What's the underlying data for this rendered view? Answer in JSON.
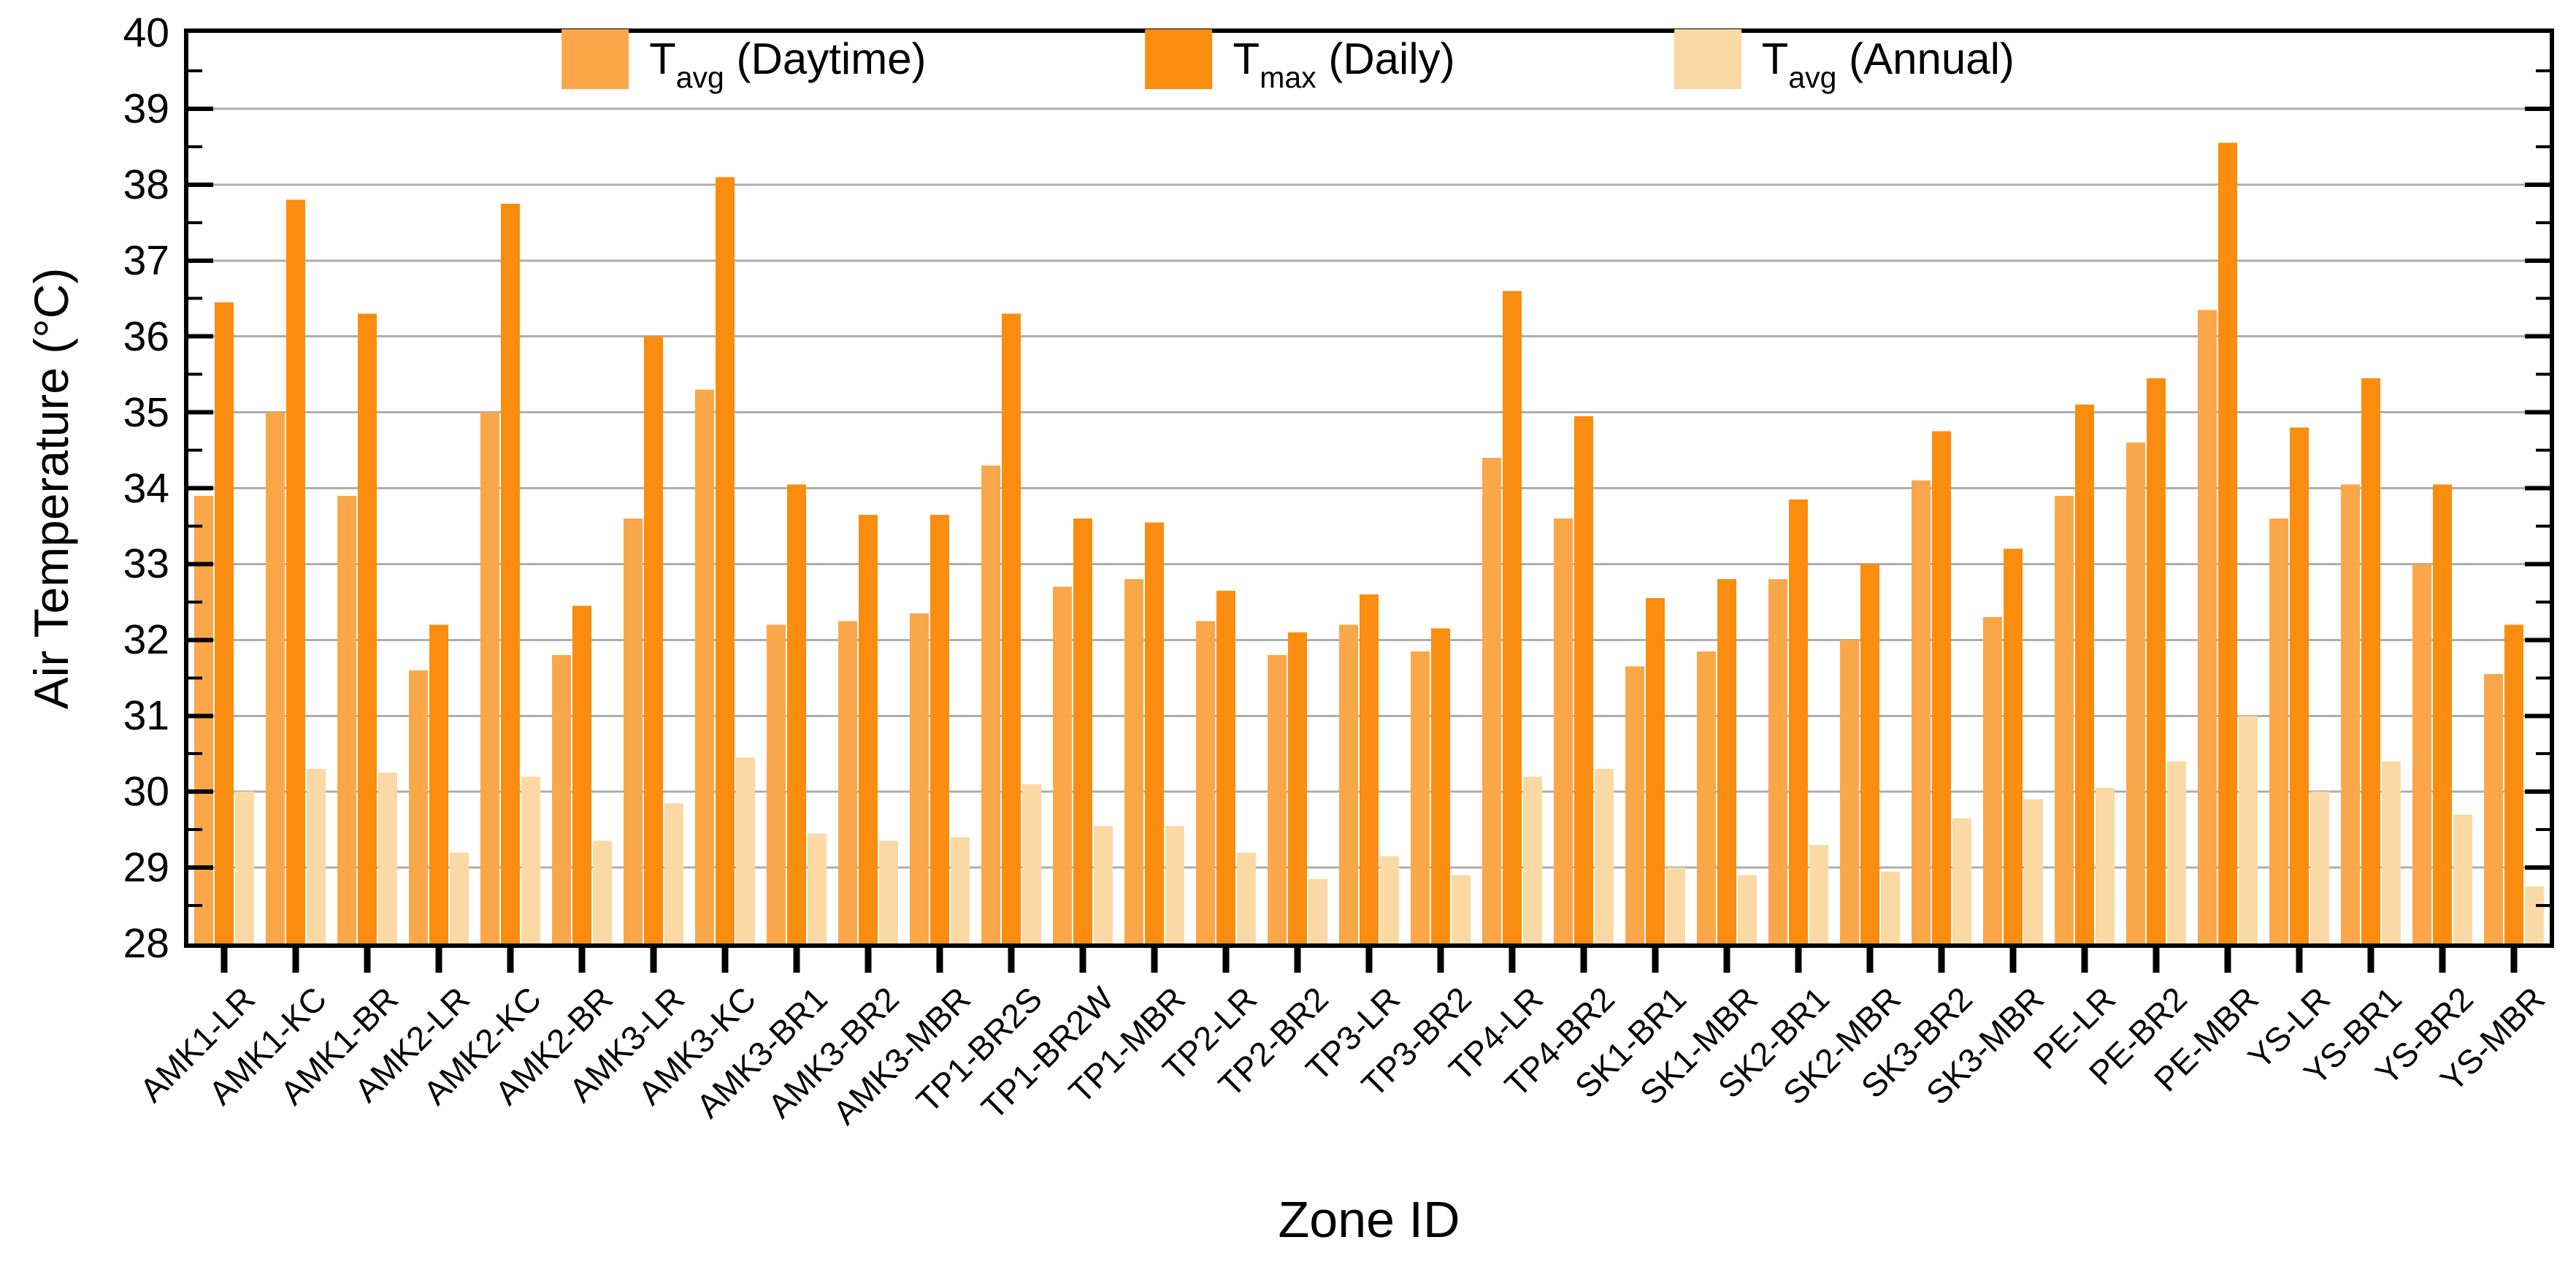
{
  "figure": {
    "y_axis_title": "Air Temperature (°C)",
    "x_axis_title": "Zone ID"
  },
  "chart_data": {
    "type": "bar",
    "title": "",
    "xlabel": "Zone ID",
    "ylabel": "Air Temperature (°C)",
    "ylim": [
      28,
      40
    ],
    "yticks": [
      28,
      29,
      30,
      31,
      32,
      33,
      34,
      35,
      36,
      37,
      38,
      39,
      40
    ],
    "grid": "horizontal gray gridlines at each integer",
    "legend_position": "top-center, inside plot area",
    "bar_group": "3 bars per category",
    "categories": [
      "AMK1-LR",
      "AMK1-KC",
      "AMK1-BR",
      "AMK2-LR",
      "AMK2-KC",
      "AMK2-BR",
      "AMK3-LR",
      "AMK3-KC",
      "AMK3-BR1",
      "AMK3-BR2",
      "AMK3-MBR",
      "TP1-BR2S",
      "TP1-BR2W",
      "TP1-MBR",
      "TP2-LR",
      "TP2-BR2",
      "TP3-LR",
      "TP3-BR2",
      "TP4-LR",
      "TP4-BR2",
      "SK1-BR1",
      "SK1-MBR",
      "SK2-BR1",
      "SK2-MBR",
      "SK3-BR2",
      "SK3-MBR",
      "PE-LR",
      "PE-BR2",
      "PE-MBR",
      "YS-LR",
      "YS-BR1",
      "YS-BR2",
      "YS-MBR"
    ],
    "series": [
      {
        "name": "Tavg (Daytime)",
        "label": {
          "t": "T",
          "sub": "avg",
          "rest": " (Daytime)"
        },
        "color": "#FAA74A",
        "values": [
          33.9,
          35.0,
          33.9,
          31.6,
          35.0,
          31.8,
          33.6,
          35.3,
          32.2,
          32.25,
          32.35,
          34.3,
          32.7,
          32.8,
          32.25,
          31.8,
          32.2,
          31.85,
          34.4,
          33.6,
          31.65,
          31.85,
          32.8,
          32.0,
          34.1,
          32.3,
          33.9,
          34.6,
          36.35,
          33.6,
          34.05,
          33.0,
          31.55
        ]
      },
      {
        "name": "Tmax (Daily)",
        "label": {
          "t": "T",
          "sub": "max",
          "rest": " (Daily)"
        },
        "color": "#FA8D0F",
        "values": [
          36.45,
          37.8,
          36.3,
          32.2,
          37.75,
          32.45,
          36.0,
          38.1,
          34.05,
          33.65,
          33.65,
          36.3,
          33.6,
          33.55,
          32.65,
          32.1,
          32.6,
          32.15,
          36.6,
          34.95,
          32.55,
          32.8,
          33.85,
          33.0,
          34.75,
          33.2,
          35.1,
          35.45,
          38.55,
          34.8,
          35.45,
          34.05,
          32.2
        ]
      },
      {
        "name": "Tavg (Annual)",
        "label": {
          "t": "T",
          "sub": "avg",
          "rest": " (Annual)"
        },
        "color": "#FBD9A5",
        "values": [
          30.0,
          30.3,
          30.25,
          29.2,
          30.2,
          29.35,
          29.85,
          30.45,
          29.45,
          29.35,
          29.4,
          30.1,
          29.55,
          29.55,
          29.2,
          28.85,
          29.15,
          28.9,
          30.2,
          30.3,
          29.0,
          28.9,
          29.3,
          28.95,
          29.65,
          29.9,
          30.05,
          30.4,
          31.0,
          30.0,
          30.4,
          29.7,
          28.75
        ]
      }
    ]
  },
  "colors": {
    "background": "#ffffff",
    "gridline": "#ADADAD",
    "axis": "#000000",
    "text": "#000000",
    "series_avg_daytime": "#FAA74A",
    "series_max_daily": "#FA8D0F",
    "series_avg_annual": "#FBD9A5"
  }
}
